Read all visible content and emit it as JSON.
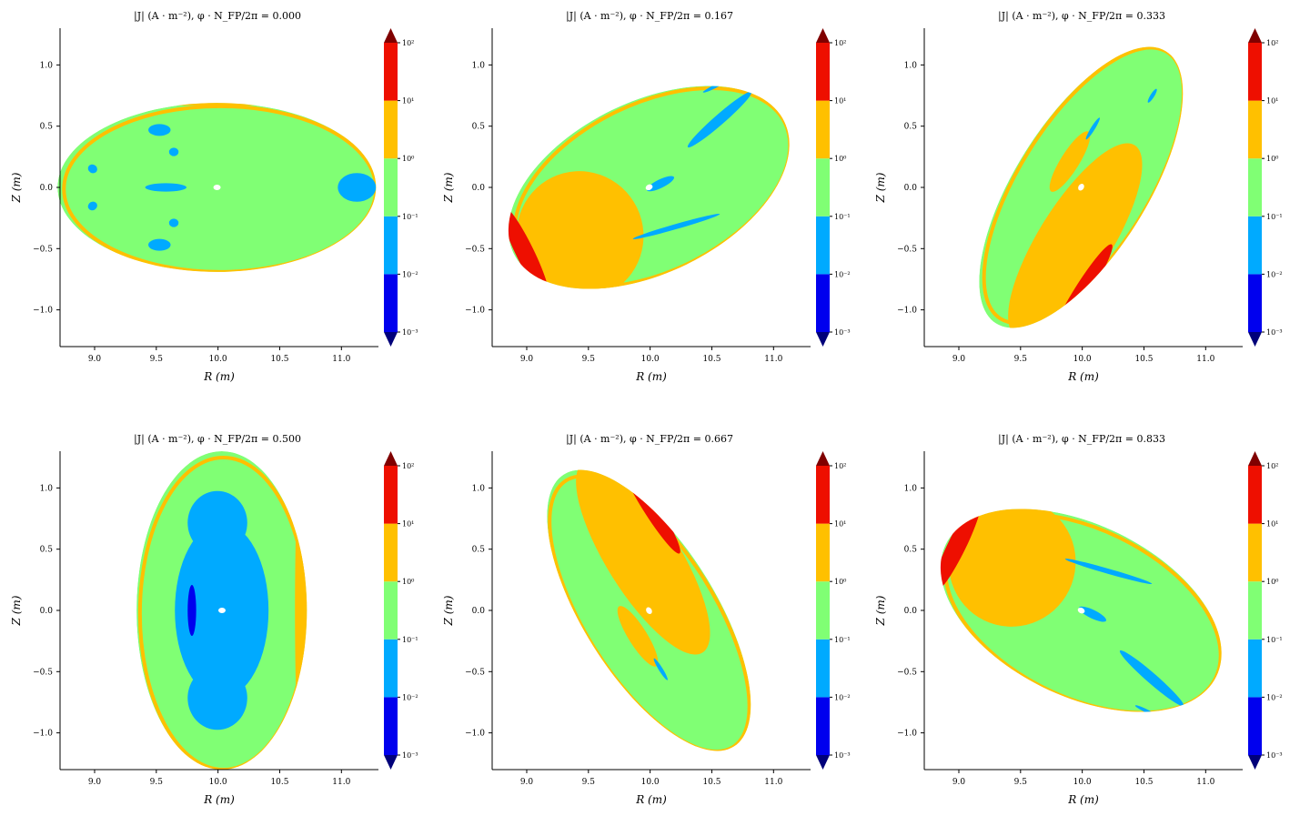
{
  "chart_data": [
    {
      "type": "heatmap",
      "title": "|J| (A · m⁻²), φ · N_FP/2π = 0.000",
      "phi_fraction": 0.0,
      "xlabel": "R (m)",
      "ylabel": "Z (m)",
      "xlim": [
        8.72,
        11.3
      ],
      "ylim": [
        -1.3,
        1.3
      ],
      "xticks": [
        "9.0",
        "9.5",
        "10.0",
        "10.5",
        "11.0"
      ],
      "yticks": [
        "1.0",
        "0.5",
        "0.0",
        "−0.5",
        "−1.0"
      ],
      "surface": {
        "r_axis": 9.99,
        "z_axis": 0.0,
        "a_r": 1.29,
        "a_z": 0.69,
        "tilt_deg": 0
      }
    },
    {
      "type": "heatmap",
      "title": "|J| (A · m⁻²), φ · N_FP/2π = 0.167",
      "phi_fraction": 0.167,
      "xlabel": "R (m)",
      "ylabel": "Z (m)",
      "xlim": [
        8.72,
        11.3
      ],
      "ylim": [
        -1.3,
        1.3
      ],
      "xticks": [
        "9.0",
        "9.5",
        "10.0",
        "10.5",
        "11.0"
      ],
      "yticks": [
        "1.0",
        "0.5",
        "0.0",
        "−0.5",
        "−1.0"
      ],
      "surface": {
        "r_axis": 9.99,
        "z_axis": 0.0,
        "a_r": 1.22,
        "a_z": 0.7,
        "tilt_deg": 26
      }
    },
    {
      "type": "heatmap",
      "title": "|J| (A · m⁻²), φ · N_FP/2π = 0.333",
      "phi_fraction": 0.333,
      "xlabel": "R (m)",
      "ylabel": "Z (m)",
      "xlim": [
        8.72,
        11.3
      ],
      "ylim": [
        -1.3,
        1.3
      ],
      "xticks": [
        "9.0",
        "9.5",
        "10.0",
        "10.5",
        "11.0"
      ],
      "yticks": [
        "1.0",
        "0.5",
        "0.0",
        "−0.5",
        "−1.0"
      ],
      "surface": {
        "r_axis": 9.99,
        "z_axis": 0.0,
        "a_r": 1.3,
        "a_z": 0.54,
        "tilt_deg": 58
      }
    },
    {
      "type": "heatmap",
      "title": "|J| (A · m⁻²), φ · N_FP/2π = 0.500",
      "phi_fraction": 0.5,
      "xlabel": "R (m)",
      "ylabel": "Z (m)",
      "xlim": [
        8.72,
        11.3
      ],
      "ylim": [
        -1.3,
        1.3
      ],
      "xticks": [
        "9.0",
        "9.5",
        "10.0",
        "10.5",
        "11.0"
      ],
      "yticks": [
        "1.0",
        "0.5",
        "0.0",
        "−0.5",
        "−1.0"
      ],
      "surface": {
        "r_axis": 10.03,
        "z_axis": 0.0,
        "a_r": 0.69,
        "a_z": 1.3,
        "tilt_deg": 0
      }
    },
    {
      "type": "heatmap",
      "title": "|J| (A · m⁻²), φ · N_FP/2π = 0.667",
      "phi_fraction": 0.667,
      "xlabel": "R (m)",
      "ylabel": "Z (m)",
      "xlim": [
        8.72,
        11.3
      ],
      "ylim": [
        -1.3,
        1.3
      ],
      "xticks": [
        "9.0",
        "9.5",
        "10.0",
        "10.5",
        "11.0"
      ],
      "yticks": [
        "1.0",
        "0.5",
        "0.0",
        "−0.5",
        "−1.0"
      ],
      "surface": {
        "r_axis": 9.99,
        "z_axis": 0.0,
        "a_r": 1.3,
        "a_z": 0.54,
        "tilt_deg": -58
      }
    },
    {
      "type": "heatmap",
      "title": "|J| (A · m⁻²), φ · N_FP/2π = 0.833",
      "phi_fraction": 0.833,
      "xlabel": "R (m)",
      "ylabel": "Z (m)",
      "xlim": [
        8.72,
        11.3
      ],
      "ylim": [
        -1.3,
        1.3
      ],
      "xticks": [
        "9.0",
        "9.5",
        "10.0",
        "10.5",
        "11.0"
      ],
      "yticks": [
        "1.0",
        "0.5",
        "0.0",
        "−0.5",
        "−1.0"
      ],
      "surface": {
        "r_axis": 9.99,
        "z_axis": 0.0,
        "a_r": 1.22,
        "a_z": 0.7,
        "tilt_deg": -26
      }
    }
  ],
  "colorbar": {
    "scale": "log",
    "levels": [
      "10⁰⁻³",
      "10⁻²",
      "10⁻¹",
      "10⁰",
      "10¹",
      "10²"
    ],
    "tick_labels": [
      "10⁻³",
      "10⁻²",
      "10⁻¹",
      "10⁰",
      "10¹",
      "10²"
    ],
    "bands": [
      "#0000ee",
      "#00aaff",
      "#80ff74",
      "#ffc000",
      "#ee0f00"
    ],
    "extend_low": "#00007a",
    "extend_high": "#800000"
  },
  "colors": {
    "very_low": "#0000ee",
    "low": "#00aaff",
    "mid": "#80ff74",
    "high": "#ffc000",
    "very_high": "#ee0f00",
    "axis": "#000000"
  }
}
